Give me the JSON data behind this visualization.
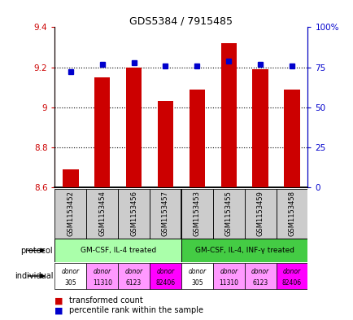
{
  "title": "GDS5384 / 7915485",
  "samples": [
    "GSM1153452",
    "GSM1153454",
    "GSM1153456",
    "GSM1153457",
    "GSM1153453",
    "GSM1153455",
    "GSM1153459",
    "GSM1153458"
  ],
  "transformed_counts": [
    8.69,
    9.15,
    9.2,
    9.03,
    9.09,
    9.32,
    9.19,
    9.09
  ],
  "percentile_ranks": [
    72,
    77,
    78,
    76,
    76,
    79,
    77,
    76
  ],
  "ylim_left": [
    8.6,
    9.4
  ],
  "ylim_right": [
    0,
    100
  ],
  "yticks_left": [
    8.6,
    8.8,
    9.0,
    9.2,
    9.4
  ],
  "ytick_labels_left": [
    "8.6",
    "8.8",
    "9",
    "9.2",
    "9.4"
  ],
  "yticks_right": [
    0,
    25,
    50,
    75,
    100
  ],
  "ytick_labels_right": [
    "0",
    "25",
    "50",
    "75",
    "100%"
  ],
  "protocol_groups": [
    {
      "label": "GM-CSF, IL-4 treated",
      "start": 0,
      "end": 4,
      "color": "#AAFFAA"
    },
    {
      "label": "GM-CSF, IL-4, INF-γ treated",
      "start": 4,
      "end": 8,
      "color": "#44CC44"
    }
  ],
  "indiv_colors": [
    "#FFFFFF",
    "#FF99FF",
    "#FF99FF",
    "#FF00FF",
    "#FFFFFF",
    "#FF99FF",
    "#FF99FF",
    "#FF00FF"
  ],
  "indiv_labels_top": [
    "donor",
    "donor",
    "donor",
    "donor",
    "donor",
    "donor",
    "donor",
    "donor"
  ],
  "indiv_labels_bot": [
    "305",
    "11310",
    "6123",
    "82406",
    "305",
    "11310",
    "6123",
    "82406"
  ],
  "bar_color": "#CC0000",
  "dot_color": "#0000CC",
  "bar_bottom": 8.6,
  "sample_bg_color": "#CCCCCC",
  "grid_yticks": [
    8.8,
    9.0,
    9.2
  ]
}
